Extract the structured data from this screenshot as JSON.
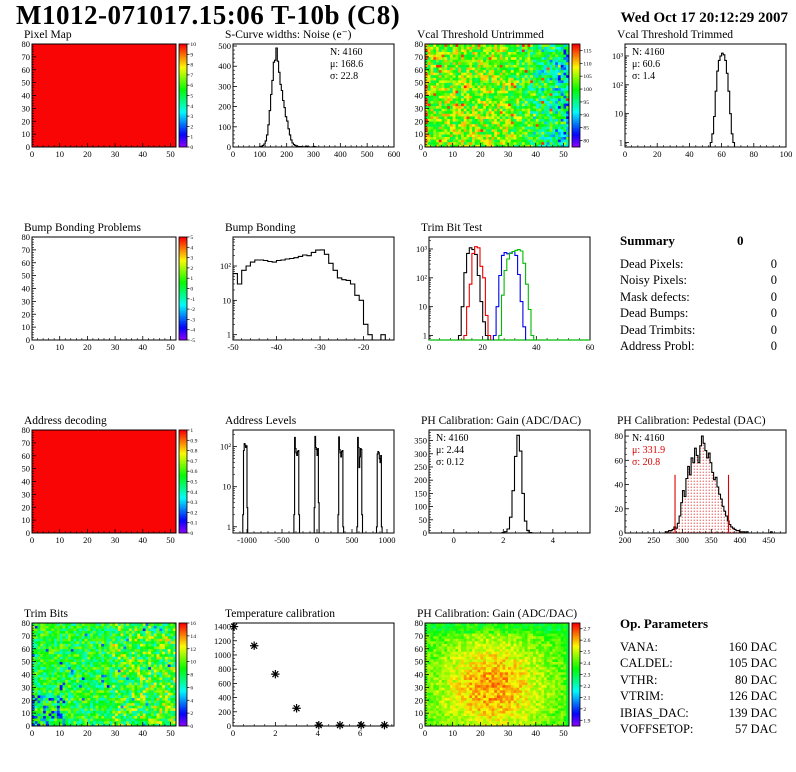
{
  "header": {
    "title": "M1012-071017.15:06 T-10b (C8)",
    "timestamp": "Wed Oct 17 20:12:29 2007"
  },
  "summary": {
    "title": "Summary",
    "total": "0",
    "rows": [
      {
        "label": "Dead Pixels:",
        "value": "0"
      },
      {
        "label": "Noisy Pixels:",
        "value": "0"
      },
      {
        "label": "Mask defects:",
        "value": "0"
      },
      {
        "label": "Dead Bumps:",
        "value": "0"
      },
      {
        "label": "Dead Trimbits:",
        "value": "0"
      },
      {
        "label": "Address Probl:",
        "value": "0"
      }
    ]
  },
  "op_parameters": {
    "title": "Op. Parameters",
    "rows": [
      {
        "label": "VANA:",
        "value": "160 DAC"
      },
      {
        "label": "CALDEL:",
        "value": "105 DAC"
      },
      {
        "label": "VTHR:",
        "value": "80 DAC"
      },
      {
        "label": "VTRIM:",
        "value": "126 DAC"
      },
      {
        "label": "IBIAS_DAC:",
        "value": "139 DAC"
      },
      {
        "label": "VOFFSETOP:",
        "value": "57 DAC"
      }
    ]
  },
  "chart_data": [
    {
      "id": "pixel-map",
      "type": "heatmap",
      "title": "Pixel Map",
      "xlim": [
        0,
        52
      ],
      "ylim": [
        0,
        80
      ],
      "xticks": [
        0,
        10,
        20,
        30,
        40,
        50
      ],
      "yticks": [
        0,
        10,
        20,
        30,
        40,
        50,
        60,
        70,
        80
      ],
      "xminor": 2,
      "yminor": 2,
      "colorbar": {
        "min": 0,
        "max": 10,
        "ticks": [
          0,
          1,
          2,
          3,
          4,
          5,
          6,
          7,
          8,
          9,
          10
        ]
      },
      "pattern": {
        "kind": "solid",
        "value": 10
      }
    },
    {
      "id": "scurve-noise",
      "type": "histogram",
      "title": "S-Curve widths: Noise (e⁻)",
      "xlim": [
        0,
        600
      ],
      "ylim": [
        0,
        510
      ],
      "xticks": [
        0,
        100,
        200,
        300,
        400,
        500,
        600
      ],
      "yticks": [
        0,
        100,
        200,
        300,
        400,
        500
      ],
      "xminor": 20,
      "yminor": 20,
      "stats": {
        "pos": "right",
        "lines": [
          {
            "text": "N: 4160"
          },
          {
            "text": "μ: 168.6"
          },
          {
            "text": "σ: 22.8"
          }
        ]
      },
      "series": [
        {
          "color": "#000000",
          "segments": [
            {
              "x0": 100,
              "bin_width": 5,
              "values": [
                2,
                4,
                8,
                15,
                30,
                60,
                110,
                180,
                260,
                330,
                420,
                430,
                490,
                425,
                370,
                310,
                280,
                230,
                195,
                150,
                128,
                90,
                60,
                35,
                20,
                12,
                8,
                5,
                3,
                2,
                2,
                1,
                1,
                1,
                5,
                2,
                1,
                0,
                0,
                1,
                3,
                1
              ]
            }
          ]
        }
      ]
    },
    {
      "id": "vcal-untrimmed",
      "type": "heatmap",
      "title": "Vcal Threshold Untrimmed",
      "xlim": [
        0,
        52
      ],
      "ylim": [
        0,
        80
      ],
      "xticks": [
        0,
        10,
        20,
        30,
        40,
        50
      ],
      "yticks": [
        0,
        10,
        20,
        30,
        40,
        50,
        60,
        70,
        80
      ],
      "xminor": 2,
      "yminor": 2,
      "colorbar": {
        "min": 77.5,
        "max": 117.5,
        "ticks": [
          80,
          85,
          90,
          95,
          100,
          105,
          110,
          115
        ]
      },
      "pattern": {
        "kind": "vcal",
        "seed": 11,
        "base": 104,
        "spread": 8,
        "right_drop": 13
      }
    },
    {
      "id": "vcal-trimmed",
      "type": "histogram",
      "title": "Vcal Threshold Trimmed",
      "xlim": [
        0,
        100
      ],
      "ylog": [
        0.7,
        2600
      ],
      "xticks": [
        0,
        20,
        40,
        60,
        80,
        100
      ],
      "xminor": 4,
      "stats": {
        "pos": "left",
        "lines": [
          {
            "text": "N: 4160"
          },
          {
            "text": "μ: 60.6"
          },
          {
            "text": "σ:  1.4"
          }
        ]
      },
      "series": [
        {
          "color": "#000000",
          "segments": [
            {
              "x0": 53,
              "bin_width": 1,
              "values": [
                1,
                2,
                8,
                60,
                300,
                700,
                1000,
                1250,
                1100,
                700,
                250,
                60,
                10,
                2,
                1
              ]
            }
          ]
        }
      ]
    },
    {
      "id": "bump-problems",
      "type": "heatmap",
      "title": "Bump Bonding Problems",
      "xlim": [
        0,
        52
      ],
      "ylim": [
        0,
        80
      ],
      "xticks": [
        0,
        10,
        20,
        30,
        40,
        50
      ],
      "yticks": [
        0,
        10,
        20,
        30,
        40,
        50,
        60,
        70,
        80
      ],
      "xminor": 2,
      "yminor": 2,
      "colorbar": {
        "min": -5,
        "max": 5,
        "ticks": [
          -5,
          -4,
          -3,
          -2,
          -1,
          0,
          1,
          2,
          3,
          4,
          5
        ]
      },
      "pattern": {
        "kind": "empty"
      }
    },
    {
      "id": "bump-bonding",
      "type": "histogram",
      "title": "Bump Bonding",
      "xlim": [
        -50,
        -13
      ],
      "ylog": [
        0.7,
        700
      ],
      "xticks": [
        -50,
        -40,
        -30,
        -20
      ],
      "xminor": 2,
      "series": [
        {
          "color": "#000000",
          "segments": [
            {
              "x0": -50,
              "bin_width": 1,
              "values": [
                60,
                30,
                75,
                100,
                130,
                150,
                150,
                145,
                135,
                130,
                145,
                150,
                160,
                165,
                175,
                190,
                210,
                200,
                250,
                290,
                295,
                220,
                120,
                75,
                45,
                40,
                38,
                30,
                14,
                10,
                2,
                1,
                0,
                0,
                1
              ]
            }
          ]
        }
      ]
    },
    {
      "id": "trim-bit-test",
      "type": "histogram",
      "title": "Trim Bit Test",
      "xlim": [
        0,
        60
      ],
      "ylog": [
        0.7,
        2600
      ],
      "xticks": [
        0,
        20,
        40,
        60
      ],
      "xminor": 4,
      "baseline_color": "#00bb00",
      "series": [
        {
          "name": "trim-bit-0",
          "color": "#000000",
          "segments": [
            {
              "x0": 11,
              "bin_width": 1,
              "values": [
                1,
                10,
                150,
                700,
                1100,
                950,
                650,
                120,
                15,
                3,
                1
              ]
            }
          ]
        },
        {
          "name": "trim-bit-1",
          "color": "#ee0000",
          "segments": [
            {
              "x0": 13,
              "bin_width": 1,
              "values": [
                1,
                10,
                60,
                700,
                1200,
                1100,
                250,
                100,
                5,
                1
              ]
            }
          ]
        },
        {
          "name": "trim-bit-2",
          "color": "#0000ee",
          "segments": [
            {
              "x0": 24,
              "bin_width": 1,
              "values": [
                1,
                10,
                120,
                600,
                750,
                680,
                720,
                820,
                600,
                130,
                15,
                2
              ]
            }
          ]
        },
        {
          "name": "trim-bit-3",
          "color": "#00bb00",
          "segments": [
            {
              "x0": 26,
              "bin_width": 1,
              "values": [
                1,
                25,
                180,
                450,
                700,
                820,
                900,
                950,
                850,
                320,
                60,
                8,
                1
              ]
            }
          ]
        }
      ]
    },
    {
      "id": "addr-decoding",
      "type": "heatmap",
      "title": "Address decoding",
      "xlim": [
        0,
        52
      ],
      "ylim": [
        0,
        80
      ],
      "xticks": [
        0,
        10,
        20,
        30,
        40,
        50
      ],
      "yticks": [
        0,
        10,
        20,
        30,
        40,
        50,
        60,
        70,
        80
      ],
      "xminor": 2,
      "yminor": 2,
      "colorbar": {
        "min": 0,
        "max": 1,
        "ticks": [
          0,
          0.1,
          0.2,
          0.3,
          0.4,
          0.5,
          0.6,
          0.7,
          0.8,
          0.9,
          1
        ]
      },
      "pattern": {
        "kind": "solid",
        "value": 1
      }
    },
    {
      "id": "addr-levels",
      "type": "histogram",
      "title": "Address Levels",
      "xlim": [
        -1200,
        1100
      ],
      "ylog": [
        0.7,
        260
      ],
      "xticks": [
        -1000,
        -500,
        0,
        500,
        1000
      ],
      "xminor": 100,
      "series": [
        {
          "color": "#000000",
          "segments": [
            {
              "x0": -1060,
              "bin_width": 10,
              "values": [
                2,
                80,
                120,
                110,
                95,
                105,
                3
              ]
            },
            {
              "x0": -330,
              "bin_width": 10,
              "values": [
                2,
                170,
                90,
                70,
                60,
                75,
                80,
                2
              ]
            },
            {
              "x0": -40,
              "bin_width": 10,
              "values": [
                3,
                180,
                95,
                85,
                60,
                90,
                4
              ]
            },
            {
              "x0": 300,
              "bin_width": 10,
              "values": [
                2,
                175,
                85,
                70,
                55,
                75,
                80,
                1
              ]
            },
            {
              "x0": 570,
              "bin_width": 10,
              "values": [
                1,
                170,
                95,
                30,
                55,
                90,
                85,
                2
              ]
            },
            {
              "x0": 850,
              "bin_width": 10,
              "values": [
                1,
                65,
                75,
                70,
                50,
                40,
                60,
                1
              ]
            }
          ]
        }
      ]
    },
    {
      "id": "ph-gain-hist",
      "type": "histogram",
      "title": "PH Calibration: Gain (ADC/DAC)",
      "xlim": [
        -1,
        5.5
      ],
      "ylim": [
        0,
        390
      ],
      "xticks": [
        0,
        2,
        4
      ],
      "yticks": [
        0,
        50,
        100,
        150,
        200,
        250,
        300,
        350
      ],
      "xminor": 0.5,
      "yminor": 10,
      "stats": {
        "pos": "left",
        "lines": [
          {
            "text": "N: 4160"
          },
          {
            "text": "μ: 2.44"
          },
          {
            "text": "σ: 0.12"
          }
        ]
      },
      "series": [
        {
          "color": "#000000",
          "segments": [
            {
              "x0": 1.95,
              "bin_width": 0.1,
              "values": [
                2,
                5,
                15,
                60,
                160,
                290,
                370,
                310,
                150,
                45,
                10,
                2
              ]
            }
          ]
        }
      ]
    },
    {
      "id": "ph-pedestal",
      "type": "histogram",
      "title": "PH Calibration: Pedestal (DAC)",
      "xlim": [
        200,
        480
      ],
      "ylim": [
        0,
        85
      ],
      "xticks": [
        200,
        250,
        300,
        350,
        400,
        450
      ],
      "yticks": [
        0,
        20,
        40,
        60,
        80
      ],
      "xminor": 10,
      "yminor": 5,
      "stats": {
        "pos": "left",
        "lines": [
          {
            "text": "N: 4160",
            "color": "#000000"
          },
          {
            "text": "μ: 331.9",
            "color": "#dd0000"
          },
          {
            "text": "σ: 20.8",
            "color": "#dd0000"
          }
        ]
      },
      "vlines": [
        {
          "x": 287,
          "y": 48,
          "color": "#dd0000"
        },
        {
          "x": 380,
          "y": 48,
          "color": "#dd0000"
        }
      ],
      "series": [
        {
          "color": "#000000",
          "fill": "red-dots",
          "segments": [
            {
              "x0": 270,
              "bin_width": 3,
              "values": [
                1,
                1,
                2,
                2,
                3,
                5,
                4,
                8,
                14,
                25,
                35,
                30,
                45,
                55,
                48,
                62,
                58,
                70,
                64,
                58,
                72,
                80,
                74,
                68,
                62,
                66,
                58,
                50,
                44,
                46,
                38,
                32,
                28,
                22,
                18,
                14,
                10,
                7,
                5,
                4,
                3,
                2,
                2,
                1,
                1,
                1,
                0,
                1,
                0,
                0,
                0,
                0,
                0,
                0,
                0,
                0,
                0,
                0,
                0,
                0,
                0,
                1
              ]
            }
          ]
        }
      ]
    },
    {
      "id": "trim-bits",
      "type": "heatmap",
      "title": "Trim Bits",
      "xlim": [
        0,
        52
      ],
      "ylim": [
        0,
        80
      ],
      "xticks": [
        0,
        10,
        20,
        30,
        40,
        50
      ],
      "yticks": [
        0,
        10,
        20,
        30,
        40,
        50,
        60,
        70,
        80
      ],
      "xminor": 2,
      "yminor": 2,
      "colorbar": {
        "min": 0,
        "max": 16,
        "ticks": [
          0,
          2,
          4,
          6,
          8,
          10,
          12,
          14,
          16
        ]
      },
      "pattern": {
        "kind": "trimbits",
        "seed": 22,
        "base": 8.5,
        "spread": 5
      }
    },
    {
      "id": "temp-cal",
      "type": "scatter",
      "title": "Temperature calibration",
      "xlim": [
        0,
        7.6
      ],
      "ylim": [
        0,
        1450
      ],
      "xticks": [
        0,
        2,
        4,
        6
      ],
      "yticks": [
        0,
        200,
        400,
        600,
        800,
        1000,
        1200,
        1400
      ],
      "xminor": 0.5,
      "yminor": 50,
      "points": [
        [
          0.05,
          1400
        ],
        [
          1,
          1130
        ],
        [
          2,
          730
        ],
        [
          3,
          250
        ],
        [
          4.05,
          12
        ],
        [
          5.05,
          12
        ],
        [
          6.05,
          12
        ],
        [
          7.15,
          12
        ]
      ]
    },
    {
      "id": "ph-gain-map",
      "type": "heatmap",
      "title": "PH Calibration: Gain (ADC/DAC)",
      "xlim": [
        0,
        52
      ],
      "ylim": [
        0,
        80
      ],
      "xticks": [
        0,
        10,
        20,
        30,
        40,
        50
      ],
      "yticks": [
        0,
        10,
        20,
        30,
        40,
        50,
        60,
        70,
        80
      ],
      "xminor": 2,
      "yminor": 2,
      "colorbar": {
        "min": 1.85,
        "max": 2.75,
        "ticks": [
          1.9,
          2,
          2.1,
          2.2,
          2.3,
          2.4,
          2.5,
          2.6,
          2.7
        ]
      },
      "pattern": {
        "kind": "gainmap",
        "seed": 33,
        "base": 2.38,
        "bump": 0.25,
        "spread": 0.14
      }
    }
  ]
}
